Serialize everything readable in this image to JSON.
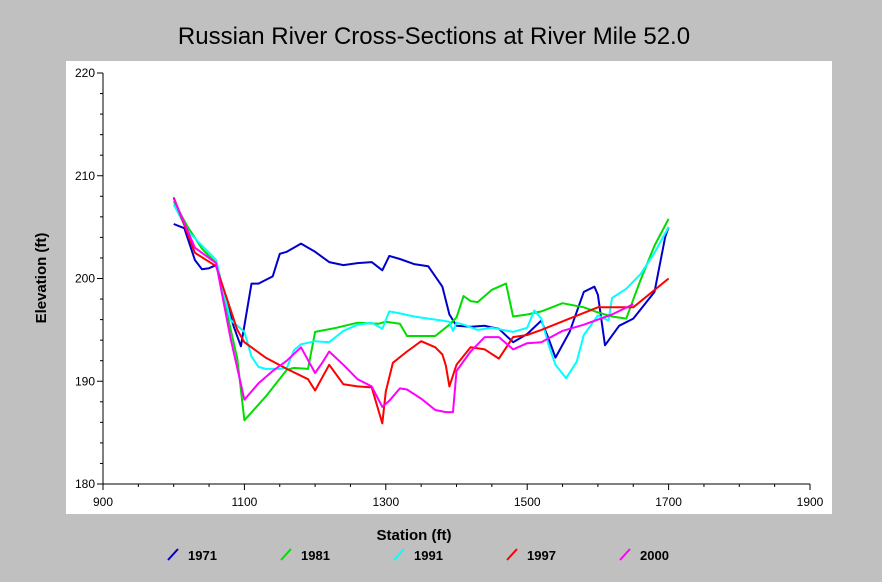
{
  "chart_data": {
    "type": "line",
    "title": "Russian River Cross-Sections at River Mile 52.0",
    "xlabel": "Station (ft)",
    "ylabel": "Elevation (ft)",
    "xlim": [
      900,
      1900
    ],
    "ylim": [
      180,
      220
    ],
    "xticks": [
      "900",
      "1100",
      "1300",
      "1500",
      "1700",
      "1900"
    ],
    "yticks": [
      "180",
      "190",
      "200",
      "210",
      "220"
    ],
    "grid": false,
    "legend_position": "bottom",
    "series": [
      {
        "name": "1971",
        "color": "#0000cc",
        "x": [
          1000,
          1015,
          1030,
          1040,
          1050,
          1060,
          1085,
          1095,
          1110,
          1120,
          1140,
          1150,
          1160,
          1180,
          1200,
          1220,
          1240,
          1260,
          1280,
          1295,
          1305,
          1320,
          1340,
          1360,
          1380,
          1390,
          1400,
          1420,
          1440,
          1460,
          1480,
          1500,
          1520,
          1530,
          1540,
          1560,
          1580,
          1595,
          1600,
          1610,
          1630,
          1650,
          1680,
          1695,
          1700
        ],
        "y": [
          205.3,
          204.9,
          201.8,
          200.9,
          201.0,
          201.3,
          195.3,
          193.4,
          199.5,
          199.5,
          200.2,
          202.4,
          202.6,
          203.4,
          202.6,
          201.6,
          201.3,
          201.5,
          201.6,
          200.8,
          202.2,
          201.9,
          201.4,
          201.2,
          199.2,
          196.5,
          195.4,
          195.3,
          195.4,
          195.1,
          193.8,
          194.6,
          195.9,
          194.2,
          192.3,
          194.8,
          198.7,
          199.2,
          198.4,
          193.5,
          195.4,
          196.1,
          198.7,
          204.0,
          205.0
        ]
      },
      {
        "name": "1981",
        "color": "#00dd00",
        "x": [
          1000,
          1020,
          1040,
          1060,
          1080,
          1090,
          1100,
          1130,
          1160,
          1170,
          1190,
          1200,
          1230,
          1260,
          1290,
          1300,
          1320,
          1330,
          1350,
          1370,
          1390,
          1400,
          1410,
          1420,
          1430,
          1450,
          1470,
          1480,
          1500,
          1520,
          1550,
          1580,
          1600,
          1620,
          1640,
          1660,
          1680,
          1700
        ],
        "y": [
          207.5,
          205.0,
          202.9,
          201.5,
          195.2,
          192.2,
          186.2,
          188.5,
          191.1,
          191.3,
          191.2,
          194.8,
          195.2,
          195.7,
          195.6,
          195.8,
          195.6,
          194.4,
          194.4,
          194.4,
          195.5,
          196.2,
          198.3,
          197.8,
          197.7,
          198.9,
          199.5,
          196.3,
          196.5,
          196.8,
          197.6,
          197.2,
          196.7,
          196.3,
          196.1,
          199.8,
          203.2,
          205.8
        ]
      },
      {
        "name": "1991",
        "color": "#00ffff",
        "x": [
          1000,
          1020,
          1040,
          1060,
          1080,
          1100,
          1110,
          1120,
          1130,
          1150,
          1160,
          1170,
          1180,
          1200,
          1220,
          1240,
          1260,
          1280,
          1295,
          1305,
          1320,
          1340,
          1360,
          1380,
          1390,
          1395,
          1400,
          1410,
          1430,
          1450,
          1480,
          1500,
          1510,
          1520,
          1530,
          1540,
          1555,
          1570,
          1580,
          1600,
          1615,
          1620,
          1640,
          1660,
          1680,
          1700
        ],
        "y": [
          207.2,
          204.6,
          203.2,
          201.8,
          196.0,
          194.8,
          192.4,
          191.4,
          191.2,
          191.2,
          191.3,
          193.0,
          193.6,
          193.9,
          193.8,
          194.9,
          195.5,
          195.7,
          195.1,
          196.8,
          196.6,
          196.3,
          196.1,
          195.9,
          195.8,
          194.9,
          195.7,
          195.5,
          195.0,
          195.2,
          194.8,
          195.2,
          196.9,
          196.1,
          193.6,
          191.6,
          190.3,
          191.9,
          194.5,
          196.4,
          195.9,
          198.1,
          199.0,
          200.4,
          202.5,
          205.0
        ]
      },
      {
        "name": "1997",
        "color": "#ff0000",
        "x": [
          1000,
          1030,
          1060,
          1090,
          1100,
          1130,
          1160,
          1190,
          1200,
          1220,
          1240,
          1260,
          1280,
          1295,
          1300,
          1310,
          1330,
          1350,
          1370,
          1380,
          1385,
          1390,
          1400,
          1420,
          1440,
          1460,
          1480,
          1500,
          1520,
          1560,
          1600,
          1650,
          1700
        ],
        "y": [
          207.9,
          202.5,
          201.2,
          195.0,
          193.8,
          192.3,
          191.2,
          190.2,
          189.1,
          191.6,
          189.7,
          189.5,
          189.4,
          185.9,
          189.0,
          191.8,
          192.9,
          193.9,
          193.3,
          192.6,
          191.5,
          189.5,
          191.6,
          193.3,
          193.1,
          192.2,
          194.3,
          194.5,
          195.0,
          196.1,
          197.2,
          197.2,
          200.0
        ]
      },
      {
        "name": "2000",
        "color": "#ff00ff",
        "x": [
          1000,
          1030,
          1060,
          1080,
          1100,
          1120,
          1140,
          1160,
          1180,
          1200,
          1210,
          1220,
          1240,
          1260,
          1280,
          1295,
          1305,
          1320,
          1330,
          1350,
          1370,
          1385,
          1395,
          1400,
          1420,
          1440,
          1460,
          1480,
          1500,
          1520,
          1550,
          1580,
          1600,
          1620,
          1650
        ],
        "y": [
          207.8,
          203.0,
          201.5,
          194.3,
          188.2,
          189.8,
          191.0,
          192.0,
          193.3,
          190.8,
          191.8,
          192.9,
          191.6,
          190.2,
          189.5,
          187.5,
          188.1,
          189.3,
          189.2,
          188.3,
          187.2,
          187.0,
          187.0,
          191.0,
          192.9,
          194.3,
          194.3,
          193.1,
          193.7,
          193.8,
          194.9,
          195.5,
          196.0,
          196.5,
          197.5
        ]
      }
    ]
  }
}
